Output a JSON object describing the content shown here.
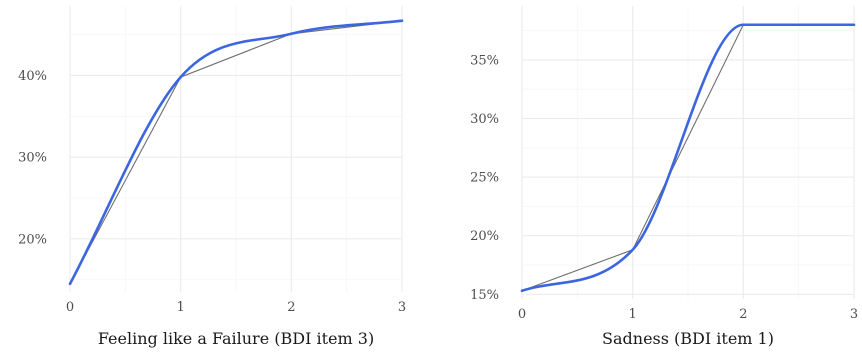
{
  "colors": {
    "smooth": "#3b66e0",
    "straight": "#6e6e6e",
    "grid": "#ebebeb"
  },
  "chart_data": [
    {
      "type": "line",
      "title": "",
      "xlabel": "Feeling like a Failure (BDI item 3)",
      "ylabel": "",
      "x": [
        0,
        1,
        2,
        3
      ],
      "xticks": [
        "0",
        "1",
        "2",
        "3"
      ],
      "xlim": [
        0,
        3
      ],
      "ylim": [
        13.5,
        48.5
      ],
      "yticks": [
        20,
        30,
        40
      ],
      "ytick_labels": [
        "20%",
        "30%",
        "40%"
      ],
      "y_unit": "%",
      "grid": true,
      "series": [
        {
          "style": "straight",
          "values": [
            14.5,
            39.8,
            45.1,
            46.7
          ]
        },
        {
          "style": "smooth",
          "values": [
            14.5,
            39.8,
            45.1,
            46.7
          ]
        }
      ]
    },
    {
      "type": "line",
      "title": "",
      "xlabel": "Sadness (BDI item 1)",
      "ylabel": "",
      "x": [
        0,
        1,
        2,
        3
      ],
      "xticks": [
        "0",
        "1",
        "2",
        "3"
      ],
      "xlim": [
        0,
        3
      ],
      "ylim": [
        14.6,
        39.6
      ],
      "yticks": [
        15,
        20,
        25,
        30,
        35
      ],
      "ytick_labels": [
        "15%",
        "20%",
        "25%",
        "30%",
        "35%"
      ],
      "y_unit": "%",
      "grid": true,
      "series": [
        {
          "style": "straight",
          "values": [
            15.3,
            18.8,
            38.0,
            38.0
          ]
        },
        {
          "style": "smooth",
          "values": [
            15.3,
            18.8,
            38.0,
            38.0
          ]
        }
      ]
    }
  ]
}
